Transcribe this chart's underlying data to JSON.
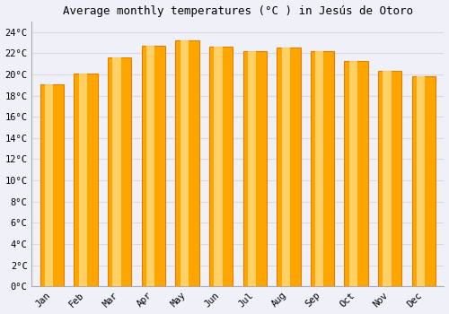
{
  "title": "Average monthly temperatures (°C ) in Jesús de Otoro",
  "months": [
    "Jan",
    "Feb",
    "Mar",
    "Apr",
    "May",
    "Jun",
    "Jul",
    "Aug",
    "Sep",
    "Oct",
    "Nov",
    "Dec"
  ],
  "values": [
    19.1,
    20.1,
    21.6,
    22.7,
    23.2,
    22.6,
    22.2,
    22.5,
    22.2,
    21.3,
    20.3,
    19.8
  ],
  "bar_color_main": "#FFA500",
  "bar_color_edge": "#E08000",
  "bar_color_light": "#FFD878",
  "ylim": [
    0,
    25
  ],
  "yticks": [
    0,
    2,
    4,
    6,
    8,
    10,
    12,
    14,
    16,
    18,
    20,
    22,
    24
  ],
  "ytick_labels": [
    "0°C",
    "2°C",
    "4°C",
    "6°C",
    "8°C",
    "10°C",
    "12°C",
    "14°C",
    "16°C",
    "18°C",
    "20°C",
    "22°C",
    "24°C"
  ],
  "background_color": "#f0f0f8",
  "plot_bg_color": "#f0f0f8",
  "grid_color": "#d8d8e8",
  "title_fontsize": 9,
  "tick_fontsize": 7.5,
  "font_family": "monospace"
}
